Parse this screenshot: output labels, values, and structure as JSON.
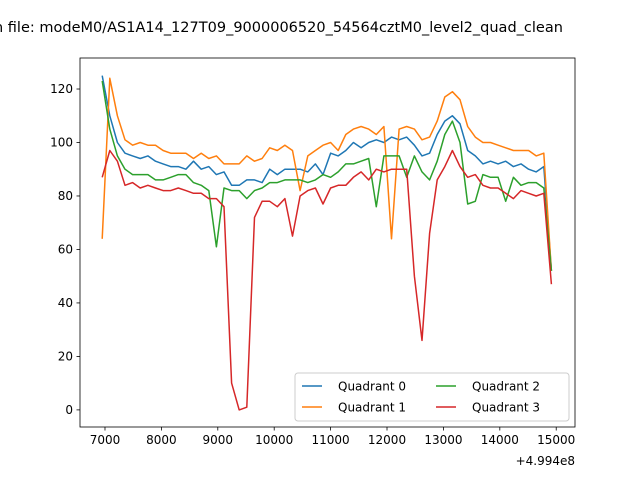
{
  "chart_data": {
    "type": "line",
    "title": "n file: modeM0/AS1A14_127T09_9000006520_54564cztM0_level2_quad_clean",
    "xlabel": "",
    "ylabel": "",
    "x_offset_label": "+4.994e8",
    "xlim": [
      6557,
      15333
    ],
    "ylim": [
      -6.4,
      131.6
    ],
    "xticks": [
      7000,
      8000,
      9000,
      10000,
      11000,
      12000,
      13000,
      14000,
      15000
    ],
    "yticks": [
      0,
      20,
      40,
      60,
      80,
      100,
      120
    ],
    "x_start": 6950,
    "x_step": 135,
    "legend_position": "lower-right",
    "series": [
      {
        "name": "Quadrant 0",
        "color": "#1f77b4",
        "values": [
          125,
          110,
          100,
          96,
          95,
          94,
          95,
          93,
          92,
          91,
          91,
          90,
          93,
          90,
          91,
          88,
          89,
          84,
          84,
          86,
          86,
          85,
          90,
          88,
          90,
          90,
          90,
          89,
          92,
          88,
          96,
          95,
          97,
          100,
          98,
          100,
          101,
          100,
          102,
          101,
          102,
          99,
          95,
          96,
          103,
          108,
          110,
          107,
          97,
          95,
          92,
          93,
          92,
          93,
          91,
          92,
          90,
          89,
          91,
          52
        ]
      },
      {
        "name": "Quadrant 1",
        "color": "#ff7f0e",
        "values": [
          64,
          124,
          110,
          101,
          99,
          100,
          99,
          99,
          97,
          96,
          96,
          96,
          94,
          96,
          94,
          95,
          92,
          92,
          92,
          95,
          93,
          94,
          98,
          97,
          99,
          97,
          82,
          95,
          97,
          99,
          100,
          97,
          103,
          105,
          106,
          105,
          103,
          106,
          64,
          105,
          106,
          105,
          101,
          102,
          108,
          117,
          119,
          116,
          106,
          102,
          100,
          100,
          99,
          98,
          97,
          97,
          97,
          95,
          96,
          52
        ]
      },
      {
        "name": "Quadrant 2",
        "color": "#2ca02c",
        "values": [
          123,
          105,
          95,
          90,
          88,
          88,
          88,
          86,
          86,
          87,
          88,
          88,
          85,
          84,
          82,
          61,
          83,
          82,
          82,
          79,
          82,
          83,
          85,
          85,
          86,
          86,
          86,
          85,
          86,
          88,
          87,
          89,
          92,
          92,
          93,
          94,
          76,
          95,
          95,
          95,
          87,
          95,
          89,
          86,
          93,
          103,
          108,
          100,
          77,
          78,
          88,
          87,
          87,
          78,
          87,
          84,
          85,
          85,
          83,
          52
        ]
      },
      {
        "name": "Quadrant 3",
        "color": "#d62728",
        "values": [
          87,
          97,
          93,
          84,
          85,
          83,
          84,
          83,
          82,
          82,
          83,
          82,
          81,
          81,
          79,
          79,
          76,
          10,
          0,
          1,
          72,
          78,
          78,
          76,
          79,
          65,
          80,
          82,
          83,
          77,
          83,
          84,
          84,
          87,
          89,
          86,
          90,
          89,
          90,
          90,
          90,
          50,
          26,
          66,
          86,
          91,
          97,
          91,
          87,
          88,
          84,
          83,
          83,
          81,
          79,
          82,
          81,
          80,
          81,
          47
        ]
      }
    ]
  }
}
